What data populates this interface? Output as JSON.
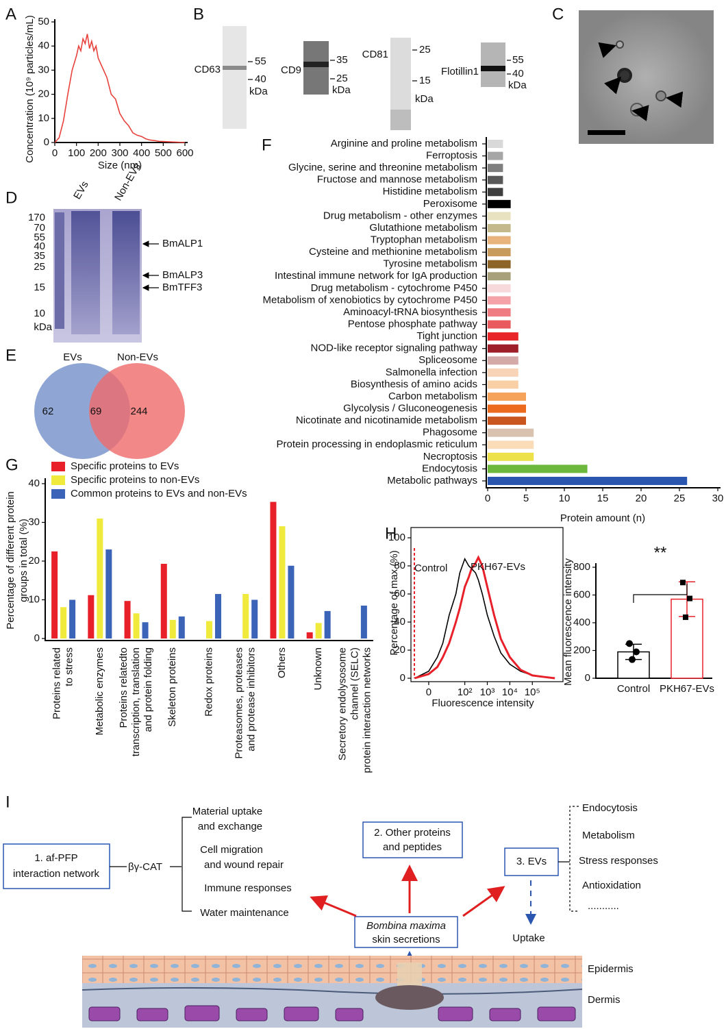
{
  "panel_labels": [
    "A",
    "B",
    "C",
    "D",
    "E",
    "F",
    "G",
    "H",
    "I"
  ],
  "blots": [
    {
      "name": "CD63",
      "markers": [
        55,
        40
      ],
      "unit": "kDa"
    },
    {
      "name": "CD9",
      "markers": [
        35,
        25
      ],
      "unit": "kDa"
    },
    {
      "name": "CD81",
      "markers": [
        25,
        15
      ],
      "unit": "kDa"
    },
    {
      "name": "Flotillin1",
      "markers": [
        55,
        40
      ],
      "unit": "kDa"
    }
  ],
  "gel": {
    "lanes": [
      "EVs",
      "Non-EVs"
    ],
    "markers": [
      170,
      70,
      55,
      40,
      35,
      25,
      15,
      10
    ],
    "unit": "kDa",
    "bands": [
      "BmALP1",
      "BmALP3",
      "BmTFF3"
    ]
  },
  "venn": {
    "sets": [
      "EVs",
      "Non-EVs"
    ],
    "counts": [
      62,
      69,
      244
    ]
  },
  "chart_data": [
    {
      "type": "line",
      "ylabel": "Concentration (10⁹ particles/mL)",
      "xlabel": "Size (nm)",
      "color": "#e8413c",
      "x": [
        0,
        20,
        40,
        60,
        80,
        100,
        110,
        120,
        130,
        140,
        150,
        160,
        170,
        180,
        190,
        200,
        220,
        240,
        260,
        280,
        300,
        320,
        340,
        360,
        380,
        400,
        420,
        440,
        460,
        480,
        500,
        550,
        600
      ],
      "values": [
        0,
        2,
        9,
        20,
        30,
        36,
        40,
        38,
        43,
        41,
        45,
        39,
        42,
        38,
        40,
        35,
        31,
        27,
        20,
        18,
        12,
        9,
        7,
        4,
        3,
        2.5,
        1.5,
        1,
        0.8,
        0.5,
        0.4,
        0.2,
        0
      ],
      "xlim": [
        0,
        600
      ],
      "xticks": [
        0,
        100,
        200,
        300,
        400,
        500,
        600
      ],
      "ylim": [
        0,
        50
      ],
      "yticks": [
        0,
        10,
        20,
        30,
        40,
        50
      ]
    },
    {
      "type": "barh",
      "xlabel": "Protein amount (n)",
      "categories": [
        "Arginine and proline metabolism",
        "Ferroptosis",
        "Glycine, serine and threonine metabolism",
        "Fructose and mannose metabolism",
        "Histidine metabolism",
        "Peroxisome",
        "Drug metabolism - other enzymes",
        "Glutathione metabolism",
        "Tryptophan metabolism",
        "Cysteine and methionine metabolism",
        "Tyrosine metabolism",
        "Intestinal immune network for IgA production",
        "Drug metabolism - cytochrome P450",
        "Metabolism of xenobiotics by cytochrome P450",
        "Aminoacyl-tRNA biosynthesis",
        "Pentose phosphate pathway",
        "Tight junction",
        "NOD-like receptor signaling pathway",
        "Spliceosome",
        "Salmonella infection",
        "Biosynthesis of amino acids",
        "Carbon metabolism",
        "Glycolysis / Gluconeogenesis",
        "Nicotinate and nicotinamide metabolism",
        "Phagosome",
        "Protein processing in endoplasmic reticulum",
        "Necroptosis",
        "Endocytosis",
        "Metabolic pathways"
      ],
      "values": [
        2,
        2,
        2,
        2,
        2,
        3,
        3,
        3,
        3,
        3,
        3,
        3,
        3,
        3,
        3,
        3,
        4,
        4,
        4,
        4,
        4,
        5,
        5,
        5,
        6,
        6,
        6,
        13,
        26
      ],
      "colors": [
        "#d9d9d9",
        "#a6a6a6",
        "#7f7f7f",
        "#595959",
        "#3f3f3f",
        "#000000",
        "#e8e2c0",
        "#c4b98a",
        "#e6b47c",
        "#c89a5c",
        "#8c6428",
        "#a8a07a",
        "#f7d9dc",
        "#f4a4a8",
        "#ef7c80",
        "#e85a5e",
        "#e8262a",
        "#9e1f2a",
        "#d4aaa8",
        "#f7d3b8",
        "#f9d0a6",
        "#f5a25a",
        "#ec6a1e",
        "#c8561e",
        "#d9c2b0",
        "#fadcb8",
        "#ede14a",
        "#6cb83c",
        "#2a56b0"
      ],
      "xlim": [
        0,
        30
      ],
      "xticks": [
        0,
        5,
        10,
        15,
        20,
        25,
        30
      ]
    },
    {
      "type": "bar",
      "ylabel": [
        "Percentage of different protein",
        "groups in total (%)"
      ],
      "categories": [
        [
          "Proteins related",
          "to stress"
        ],
        [
          "Metabolic enzymes"
        ],
        [
          "Proteins relatedto",
          "transcription, translation",
          "and protein folding"
        ],
        [
          "Skeleton proteins"
        ],
        [
          "Redox proteins"
        ],
        [
          "Proteasomes, proteases",
          "and protease inhibitors"
        ],
        [
          "Others"
        ],
        [
          "Unknown"
        ],
        [
          "Secretory endolysosome",
          "channel (SELC)",
          "protein interaction networks"
        ]
      ],
      "series": [
        {
          "name": "Specific proteins to EVs",
          "color": "#e8202a",
          "values": [
            22.5,
            11.2,
            9.7,
            19.3,
            0,
            0,
            35.3,
            1.6,
            0
          ]
        },
        {
          "name": "Specific proteins to non-EVs",
          "color": "#f0ea3c",
          "values": [
            8.1,
            31,
            6.5,
            4.8,
            4.5,
            11.5,
            29,
            4,
            0
          ]
        },
        {
          "name": "Common proteins to EVs and non-EVs",
          "color": "#3b63b8",
          "values": [
            10,
            23,
            4.2,
            5.7,
            11.5,
            10,
            18.8,
            7.1,
            8.5
          ]
        }
      ],
      "ylim": [
        0,
        40
      ],
      "yticks": [
        0,
        10,
        20,
        30,
        40
      ]
    },
    {
      "type": "line",
      "xscale": "asinh",
      "ylabel": "Percentage of max (%)",
      "xlabel": "Fluorescence intensity",
      "x": [
        -10,
        0,
        5,
        10,
        20,
        40,
        60,
        100,
        150,
        200,
        300,
        400,
        600,
        1000,
        2000,
        4000,
        10000,
        30000,
        100000,
        300000,
        1000000
      ],
      "series": [
        {
          "name": "Control",
          "color": "#000000",
          "values": [
            0,
            5,
            15,
            25,
            45,
            60,
            75,
            85,
            80,
            78,
            75,
            70,
            60,
            45,
            30,
            18,
            10,
            5,
            2,
            1,
            0
          ]
        },
        {
          "name": "PKH67-EVs",
          "color": "#e8202a",
          "values": [
            0,
            3,
            8,
            15,
            25,
            40,
            50,
            65,
            72,
            78,
            82,
            86,
            80,
            65,
            45,
            28,
            15,
            6,
            2,
            1,
            0
          ]
        }
      ],
      "xlim": [
        -15,
        2000000
      ],
      "xticks": [
        0,
        {
          "value": 100,
          "label": "10²"
        },
        {
          "value": 1000,
          "label": "10³"
        },
        {
          "value": 10000,
          "label": "10⁴"
        },
        {
          "value": 100000,
          "label": "10⁵"
        }
      ],
      "ylim": [
        0,
        100
      ],
      "yticks": [
        0,
        20,
        40,
        60,
        80,
        100
      ]
    },
    {
      "type": "bar",
      "ylabel": "Mean fluorescence intensity",
      "significance": "**",
      "categories": [
        "Control",
        "PKH67-EVs"
      ],
      "values": [
        190,
        570
      ],
      "errors": [
        55,
        125
      ],
      "points": [
        [
          250,
          190,
          135
        ],
        [
          690,
          575,
          440
        ]
      ],
      "colors": [
        "#000000",
        "#e8202a"
      ],
      "ylim": [
        0,
        800
      ],
      "yticks": [
        0,
        200,
        400,
        600,
        800
      ]
    }
  ],
  "diagram": {
    "box1": [
      "1. af-PFP",
      "interaction network"
    ],
    "protein": "βγ-CAT",
    "functions": [
      [
        "Material uptake",
        "and exchange"
      ],
      [
        "Cell migration",
        "and wound repair"
      ],
      [
        "Immune responses"
      ],
      [
        "Water maintenance"
      ]
    ],
    "box2": [
      "2. Other proteins",
      "and peptides"
    ],
    "box3": "3. EVs",
    "ev_functions": [
      "Endocytosis",
      "Metabolism",
      "Stress responses",
      "Antioxidation",
      "..........."
    ],
    "source": [
      "Bombina maxima",
      "skin secretions"
    ],
    "uptake": "Uptake",
    "layers": [
      "Epidermis",
      "Dermis"
    ]
  }
}
